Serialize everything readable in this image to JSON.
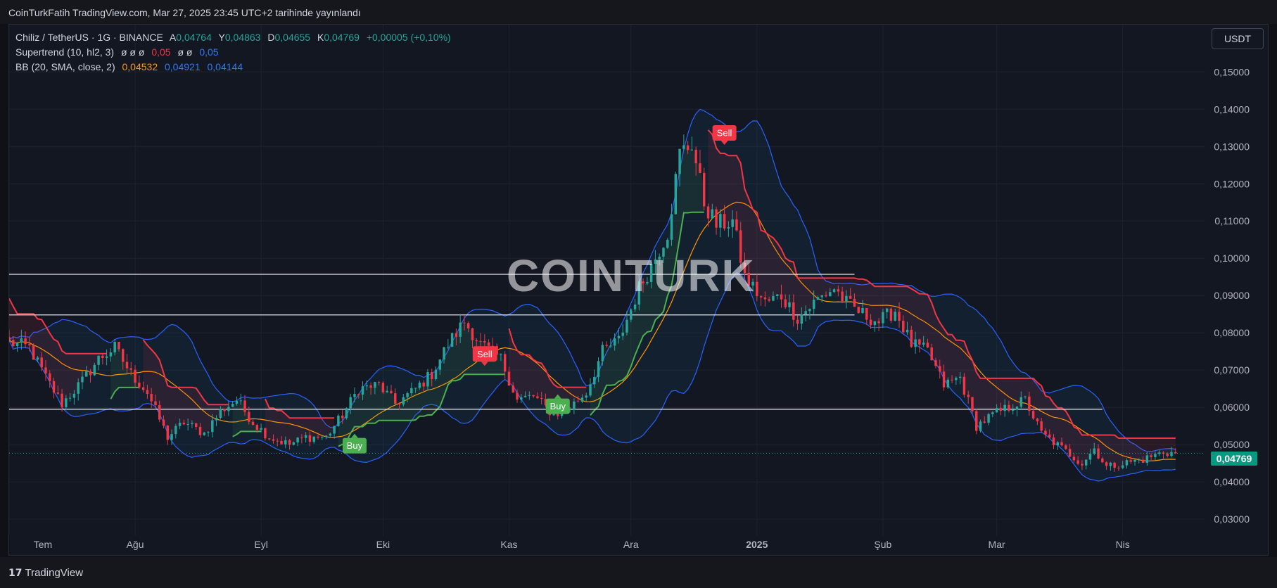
{
  "header": {
    "publish_line": "CoinTurkFatih TradingView.com, Mar 27, 2025 23:45 UTC+2 tarihinde yayınlandı"
  },
  "legend": {
    "symbol": "Chiliz / TetherUS · 1G · BINANCE",
    "open_label": "A",
    "open": "0,04764",
    "high_label": "Y",
    "high": "0,04863",
    "low_label": "D",
    "low": "0,04655",
    "close_label": "K",
    "close": "0,04769",
    "change": "+0,00005 (+0,10%)",
    "supertrend_name": "Supertrend (10, hl2, 3)",
    "supertrend_empty": "ø ø ø",
    "supertrend_v1": "0,05",
    "supertrend_empty2": "ø ø",
    "supertrend_v2": "0,05",
    "bb_name": "BB (20, SMA, close, 2)",
    "bb_basis": "0,04532",
    "bb_upper": "0,04921",
    "bb_lower": "0,04144"
  },
  "currency_button": "USDT",
  "last_price_tag": "0,04769",
  "watermark": "COINTURK",
  "footer": {
    "brand": "TradingView",
    "logo_mark": "17"
  },
  "colors": {
    "up": "#26a69a",
    "down": "#f23645",
    "bb_basis": "#ff9800",
    "bb_band": "#2962ff",
    "st_bull": "#4caf50",
    "st_bear": "#f23645",
    "hline": "#ffffff",
    "background": "#131722"
  },
  "chart_data": {
    "type": "candlestick",
    "symbol": "CHZ/USDT",
    "timeframe": "1D",
    "y_axis": {
      "ticks": [
        "0,03000",
        "0,04000",
        "0,05000",
        "0,06000",
        "0,07000",
        "0,08000",
        "0,09000",
        "0,10000",
        "0,11000",
        "0,12000",
        "0,13000",
        "0,14000",
        "0,15000"
      ],
      "tick_values": [
        0.03,
        0.04,
        0.05,
        0.06,
        0.07,
        0.08,
        0.09,
        0.1,
        0.11,
        0.12,
        0.13,
        0.14,
        0.15
      ],
      "range": [
        0.0255,
        0.1627
      ]
    },
    "x_axis": {
      "labels": [
        "Tem",
        "Ağu",
        "Eyl",
        "Eki",
        "Kas",
        "Ara",
        "2025",
        "Şub",
        "Mar",
        "Nis"
      ],
      "label_bold": [
        false,
        false,
        false,
        false,
        false,
        false,
        true,
        false,
        false,
        false
      ],
      "label_day_index": [
        0,
        31,
        62,
        92,
        123,
        153,
        184,
        215,
        243,
        274
      ],
      "start": "2024-07-01",
      "end": "2025-04-05"
    },
    "horizontal_lines": [
      {
        "value": 0.0957,
        "from_day": 0,
        "to_day": 208
      },
      {
        "value": 0.0848,
        "from_day": 0,
        "to_day": 208
      },
      {
        "value": 0.0595,
        "from_day": 0,
        "to_day": 269
      }
    ],
    "close_anchors": [
      [
        0,
        0.0775
      ],
      [
        5,
        0.076
      ],
      [
        9,
        0.068
      ],
      [
        13,
        0.061
      ],
      [
        18,
        0.067
      ],
      [
        22,
        0.073
      ],
      [
        26,
        0.076
      ],
      [
        30,
        0.069
      ],
      [
        34,
        0.064
      ],
      [
        39,
        0.052
      ],
      [
        43,
        0.056
      ],
      [
        48,
        0.053
      ],
      [
        52,
        0.059
      ],
      [
        56,
        0.062
      ],
      [
        60,
        0.056
      ],
      [
        64,
        0.052
      ],
      [
        69,
        0.05
      ],
      [
        73,
        0.052
      ],
      [
        78,
        0.052
      ],
      [
        82,
        0.058
      ],
      [
        86,
        0.065
      ],
      [
        91,
        0.066
      ],
      [
        95,
        0.061
      ],
      [
        99,
        0.064
      ],
      [
        104,
        0.069
      ],
      [
        108,
        0.077
      ],
      [
        112,
        0.083
      ],
      [
        116,
        0.077
      ],
      [
        121,
        0.073
      ],
      [
        125,
        0.062
      ],
      [
        129,
        0.063
      ],
      [
        134,
        0.058
      ],
      [
        138,
        0.06
      ],
      [
        142,
        0.064
      ],
      [
        146,
        0.075
      ],
      [
        150,
        0.078
      ],
      [
        155,
        0.092
      ],
      [
        158,
        0.098
      ],
      [
        162,
        0.107
      ],
      [
        165,
        0.128
      ],
      [
        168,
        0.131
      ],
      [
        171,
        0.115
      ],
      [
        174,
        0.109
      ],
      [
        178,
        0.11
      ],
      [
        181,
        0.095
      ],
      [
        186,
        0.088
      ],
      [
        190,
        0.09
      ],
      [
        194,
        0.084
      ],
      [
        199,
        0.089
      ],
      [
        203,
        0.092
      ],
      [
        206,
        0.088
      ],
      [
        210,
        0.085
      ],
      [
        214,
        0.083
      ],
      [
        218,
        0.086
      ],
      [
        222,
        0.077
      ],
      [
        226,
        0.075
      ],
      [
        230,
        0.066
      ],
      [
        234,
        0.068
      ],
      [
        238,
        0.055
      ],
      [
        242,
        0.058
      ],
      [
        246,
        0.06
      ],
      [
        250,
        0.062
      ],
      [
        254,
        0.053
      ],
      [
        259,
        0.049
      ],
      [
        264,
        0.045
      ],
      [
        267,
        0.049
      ],
      [
        270,
        0.044
      ],
      [
        274,
        0.045
      ],
      [
        279,
        0.046
      ],
      [
        284,
        0.048
      ],
      [
        287,
        0.0477
      ]
    ],
    "last_close": 0.04769,
    "indicators": {
      "bollinger_bands": {
        "length": 20,
        "mult": 2,
        "source": "close",
        "basis": 0.04532,
        "upper": 0.04921,
        "lower": 0.04144
      },
      "supertrend": {
        "atr_length": 10,
        "factor": 3,
        "source": "hl2"
      }
    },
    "signals": [
      {
        "label": "Buy",
        "day": 85,
        "type": "buy"
      },
      {
        "label": "Sell",
        "day": 117,
        "type": "sell"
      },
      {
        "label": "Buy",
        "day": 135,
        "type": "buy"
      },
      {
        "label": "Sell",
        "day": 176,
        "type": "sell"
      }
    ],
    "grid": true,
    "legend_position": "top-left"
  }
}
